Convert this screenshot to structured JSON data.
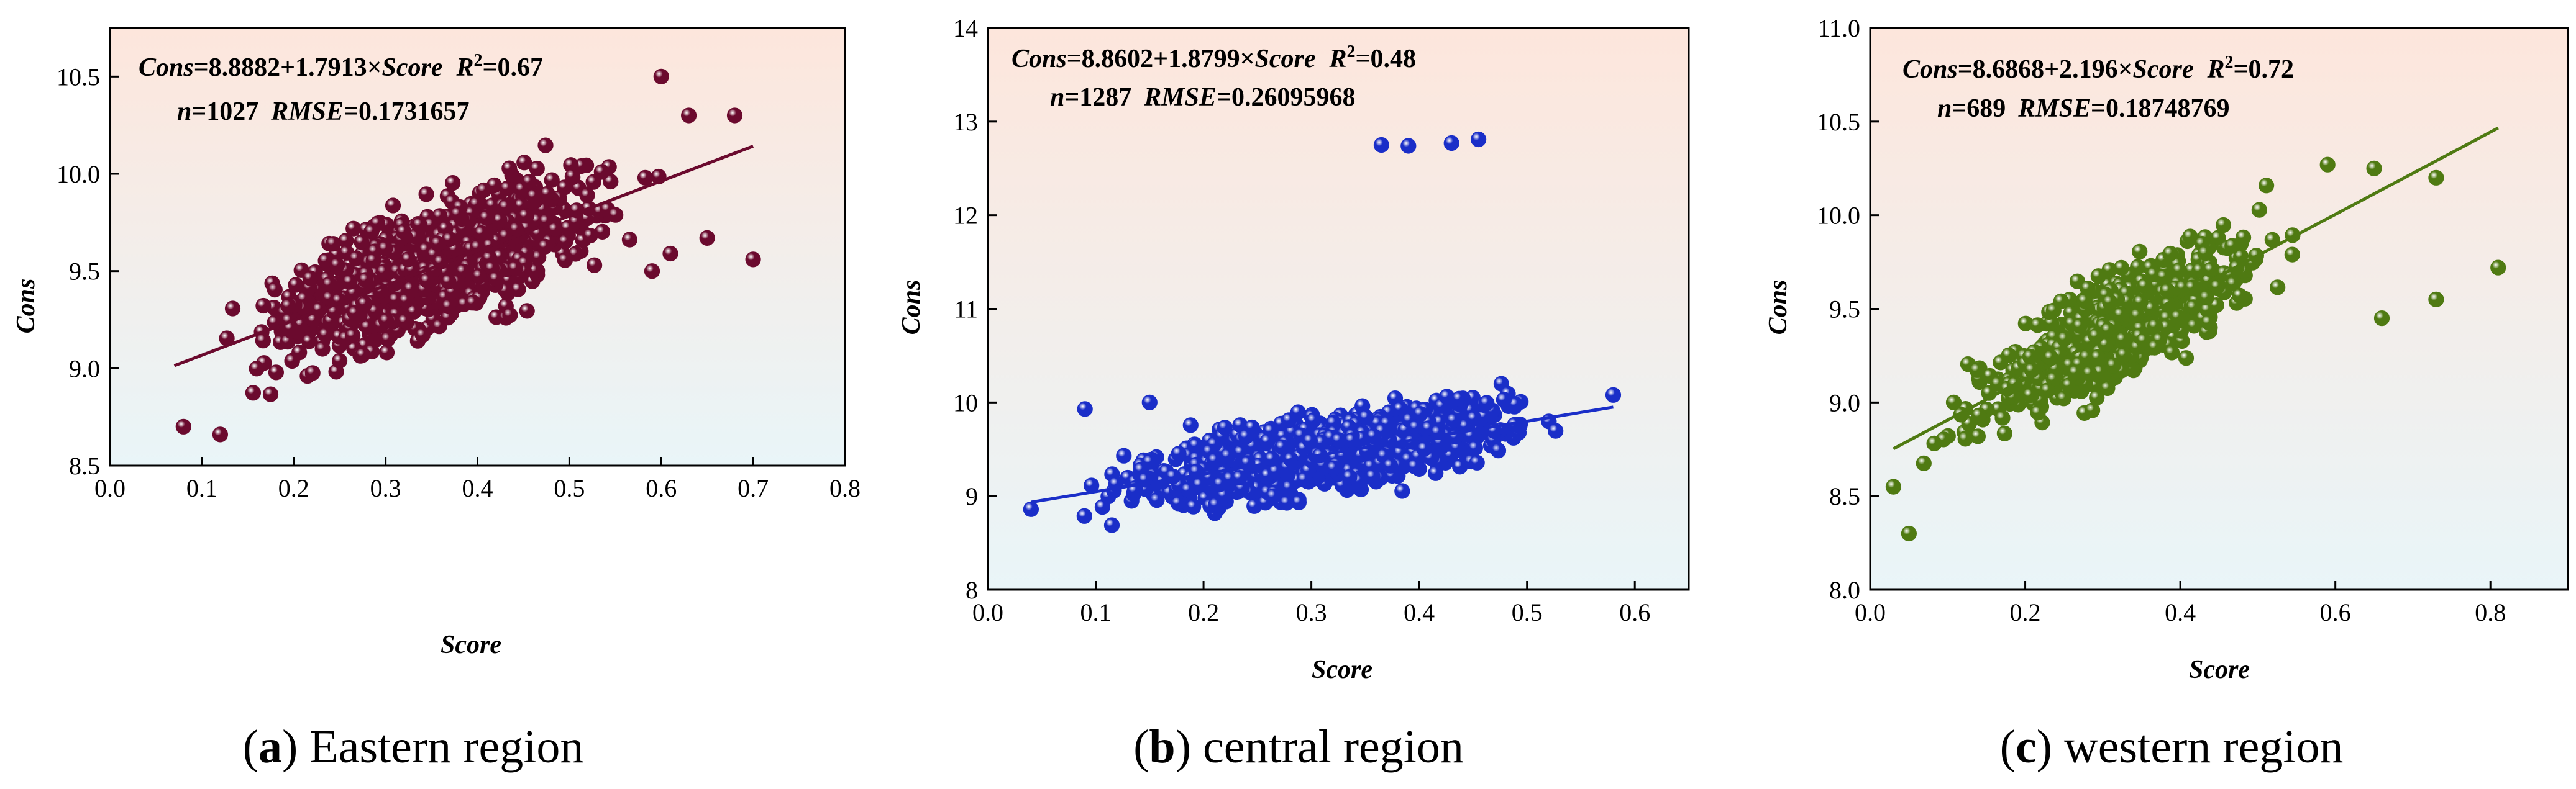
{
  "chart_data": [
    {
      "type": "scatter",
      "id": "a",
      "caption_letter": "a",
      "caption_text": "Eastern region",
      "xlabel": "Score",
      "ylabel": "Cons",
      "xlim": [
        0.0,
        0.8
      ],
      "ylim": [
        8.5,
        10.75
      ],
      "xticks": [
        0.0,
        0.1,
        0.2,
        0.3,
        0.4,
        0.5,
        0.6,
        0.7,
        0.8
      ],
      "yticks": [
        8.5,
        9.0,
        9.5,
        10.0,
        10.5
      ],
      "xtick_labels": [
        "0.0",
        "0.1",
        "0.2",
        "0.3",
        "0.4",
        "0.5",
        "0.6",
        "0.7",
        "0.8"
      ],
      "ytick_labels": [
        "8.5",
        "9.0",
        "9.5",
        "10.0",
        "10.5"
      ],
      "eq_line1": {
        "v1": "Cons",
        "v2": "=8.8882+1.7913×",
        "v3": "Score",
        "v4": "R",
        "v5": "2",
        "v6": "=0.67"
      },
      "eq_line2": {
        "v1": "n",
        "v2": "=1027",
        "v3": "RMSE",
        "v4": "=0.1731657"
      },
      "intercept": 8.8882,
      "slope": 1.7913,
      "n": 1027,
      "r2": 0.67,
      "rmse": 0.1731657,
      "fit_range": [
        0.07,
        0.7
      ],
      "color": "#6b0a2e",
      "gradient_top": "#fde6dc",
      "gradient_bottom": "#e9f5f8",
      "cloud": {
        "x_min": 0.07,
        "x_max": 0.62,
        "noise": 0.2
      },
      "outliers": [
        {
          "x": 0.7,
          "y": 9.56
        },
        {
          "x": 0.6,
          "y": 10.5
        },
        {
          "x": 0.68,
          "y": 10.3
        },
        {
          "x": 0.65,
          "y": 9.67
        },
        {
          "x": 0.61,
          "y": 9.59
        },
        {
          "x": 0.59,
          "y": 9.5
        },
        {
          "x": 0.12,
          "y": 8.66
        },
        {
          "x": 0.08,
          "y": 8.7
        },
        {
          "x": 0.63,
          "y": 10.3
        }
      ]
    },
    {
      "type": "scatter",
      "id": "b",
      "caption_letter": "b",
      "caption_text": "central region",
      "xlabel": "Score",
      "ylabel": "Cons",
      "xlim": [
        0.0,
        0.65
      ],
      "ylim": [
        8.0,
        14.0
      ],
      "xticks": [
        0.0,
        0.1,
        0.2,
        0.3,
        0.4,
        0.5,
        0.6
      ],
      "yticks": [
        8,
        9,
        10,
        11,
        12,
        13,
        14
      ],
      "xtick_labels": [
        "0.0",
        "0.1",
        "0.2",
        "0.3",
        "0.4",
        "0.5",
        "0.6"
      ],
      "ytick_labels": [
        "8",
        "9",
        "10",
        "11",
        "12",
        "13",
        "14"
      ],
      "eq_line1": {
        "v1": "Cons",
        "v2": "=8.8602+1.8799×",
        "v3": "Score",
        "v4": "R",
        "v5": "2",
        "v6": "=0.48"
      },
      "eq_line2": {
        "v1": "n",
        "v2": "=1287",
        "v3": "RMSE",
        "v4": "=0.26095968"
      },
      "intercept": 8.8602,
      "slope": 1.8799,
      "n": 1287,
      "r2": 0.48,
      "rmse": 0.26095968,
      "fit_range": [
        0.04,
        0.58
      ],
      "color": "#1a2ec8",
      "gradient_top": "#fde6dc",
      "gradient_bottom": "#e9f5f8",
      "cloud": {
        "x_min": 0.05,
        "x_max": 0.57,
        "noise": 0.26
      },
      "outliers": [
        {
          "x": 0.365,
          "y": 12.75
        },
        {
          "x": 0.39,
          "y": 12.74
        },
        {
          "x": 0.43,
          "y": 12.77
        },
        {
          "x": 0.455,
          "y": 12.81
        },
        {
          "x": 0.04,
          "y": 8.86
        },
        {
          "x": 0.58,
          "y": 10.08
        },
        {
          "x": 0.09,
          "y": 9.93
        },
        {
          "x": 0.15,
          "y": 10.0
        }
      ]
    },
    {
      "type": "scatter",
      "id": "c",
      "caption_letter": "c",
      "caption_text": "western region",
      "xlabel": "Score",
      "ylabel": "Cons",
      "xlim": [
        0.0,
        0.9
      ],
      "ylim": [
        8.0,
        11.0
      ],
      "xticks": [
        0.0,
        0.2,
        0.4,
        0.6,
        0.8
      ],
      "yticks": [
        8.0,
        8.5,
        9.0,
        9.5,
        10.0,
        10.5,
        11.0
      ],
      "xtick_labels": [
        "0.0",
        "0.2",
        "0.4",
        "0.6",
        "0.8"
      ],
      "ytick_labels": [
        "8.0",
        "8.5",
        "9.0",
        "9.5",
        "10.0",
        "10.5",
        "11.0"
      ],
      "eq_line1": {
        "v1": "Cons",
        "v2": "=8.6868+2.196×",
        "v3": "Score",
        "v4": "R",
        "v5": "2",
        "v6": "=0.72"
      },
      "eq_line2": {
        "v1": "n",
        "v2": "=689",
        "v3": "RMSE",
        "v4": "=0.18748769"
      },
      "intercept": 8.6868,
      "slope": 2.196,
      "n": 689,
      "r2": 0.72,
      "rmse": 0.18748769,
      "fit_range": [
        0.03,
        0.81
      ],
      "color": "#4f7a12",
      "gradient_top": "#fde6dc",
      "gradient_bottom": "#e9f5f8",
      "cloud": {
        "x_min": 0.03,
        "x_max": 0.6,
        "noise": 0.19
      },
      "outliers": [
        {
          "x": 0.81,
          "y": 9.72
        },
        {
          "x": 0.73,
          "y": 9.55
        },
        {
          "x": 0.66,
          "y": 9.45
        },
        {
          "x": 0.73,
          "y": 10.2
        },
        {
          "x": 0.65,
          "y": 10.25
        },
        {
          "x": 0.05,
          "y": 8.3
        },
        {
          "x": 0.03,
          "y": 8.55
        },
        {
          "x": 0.59,
          "y": 10.27
        }
      ]
    }
  ]
}
